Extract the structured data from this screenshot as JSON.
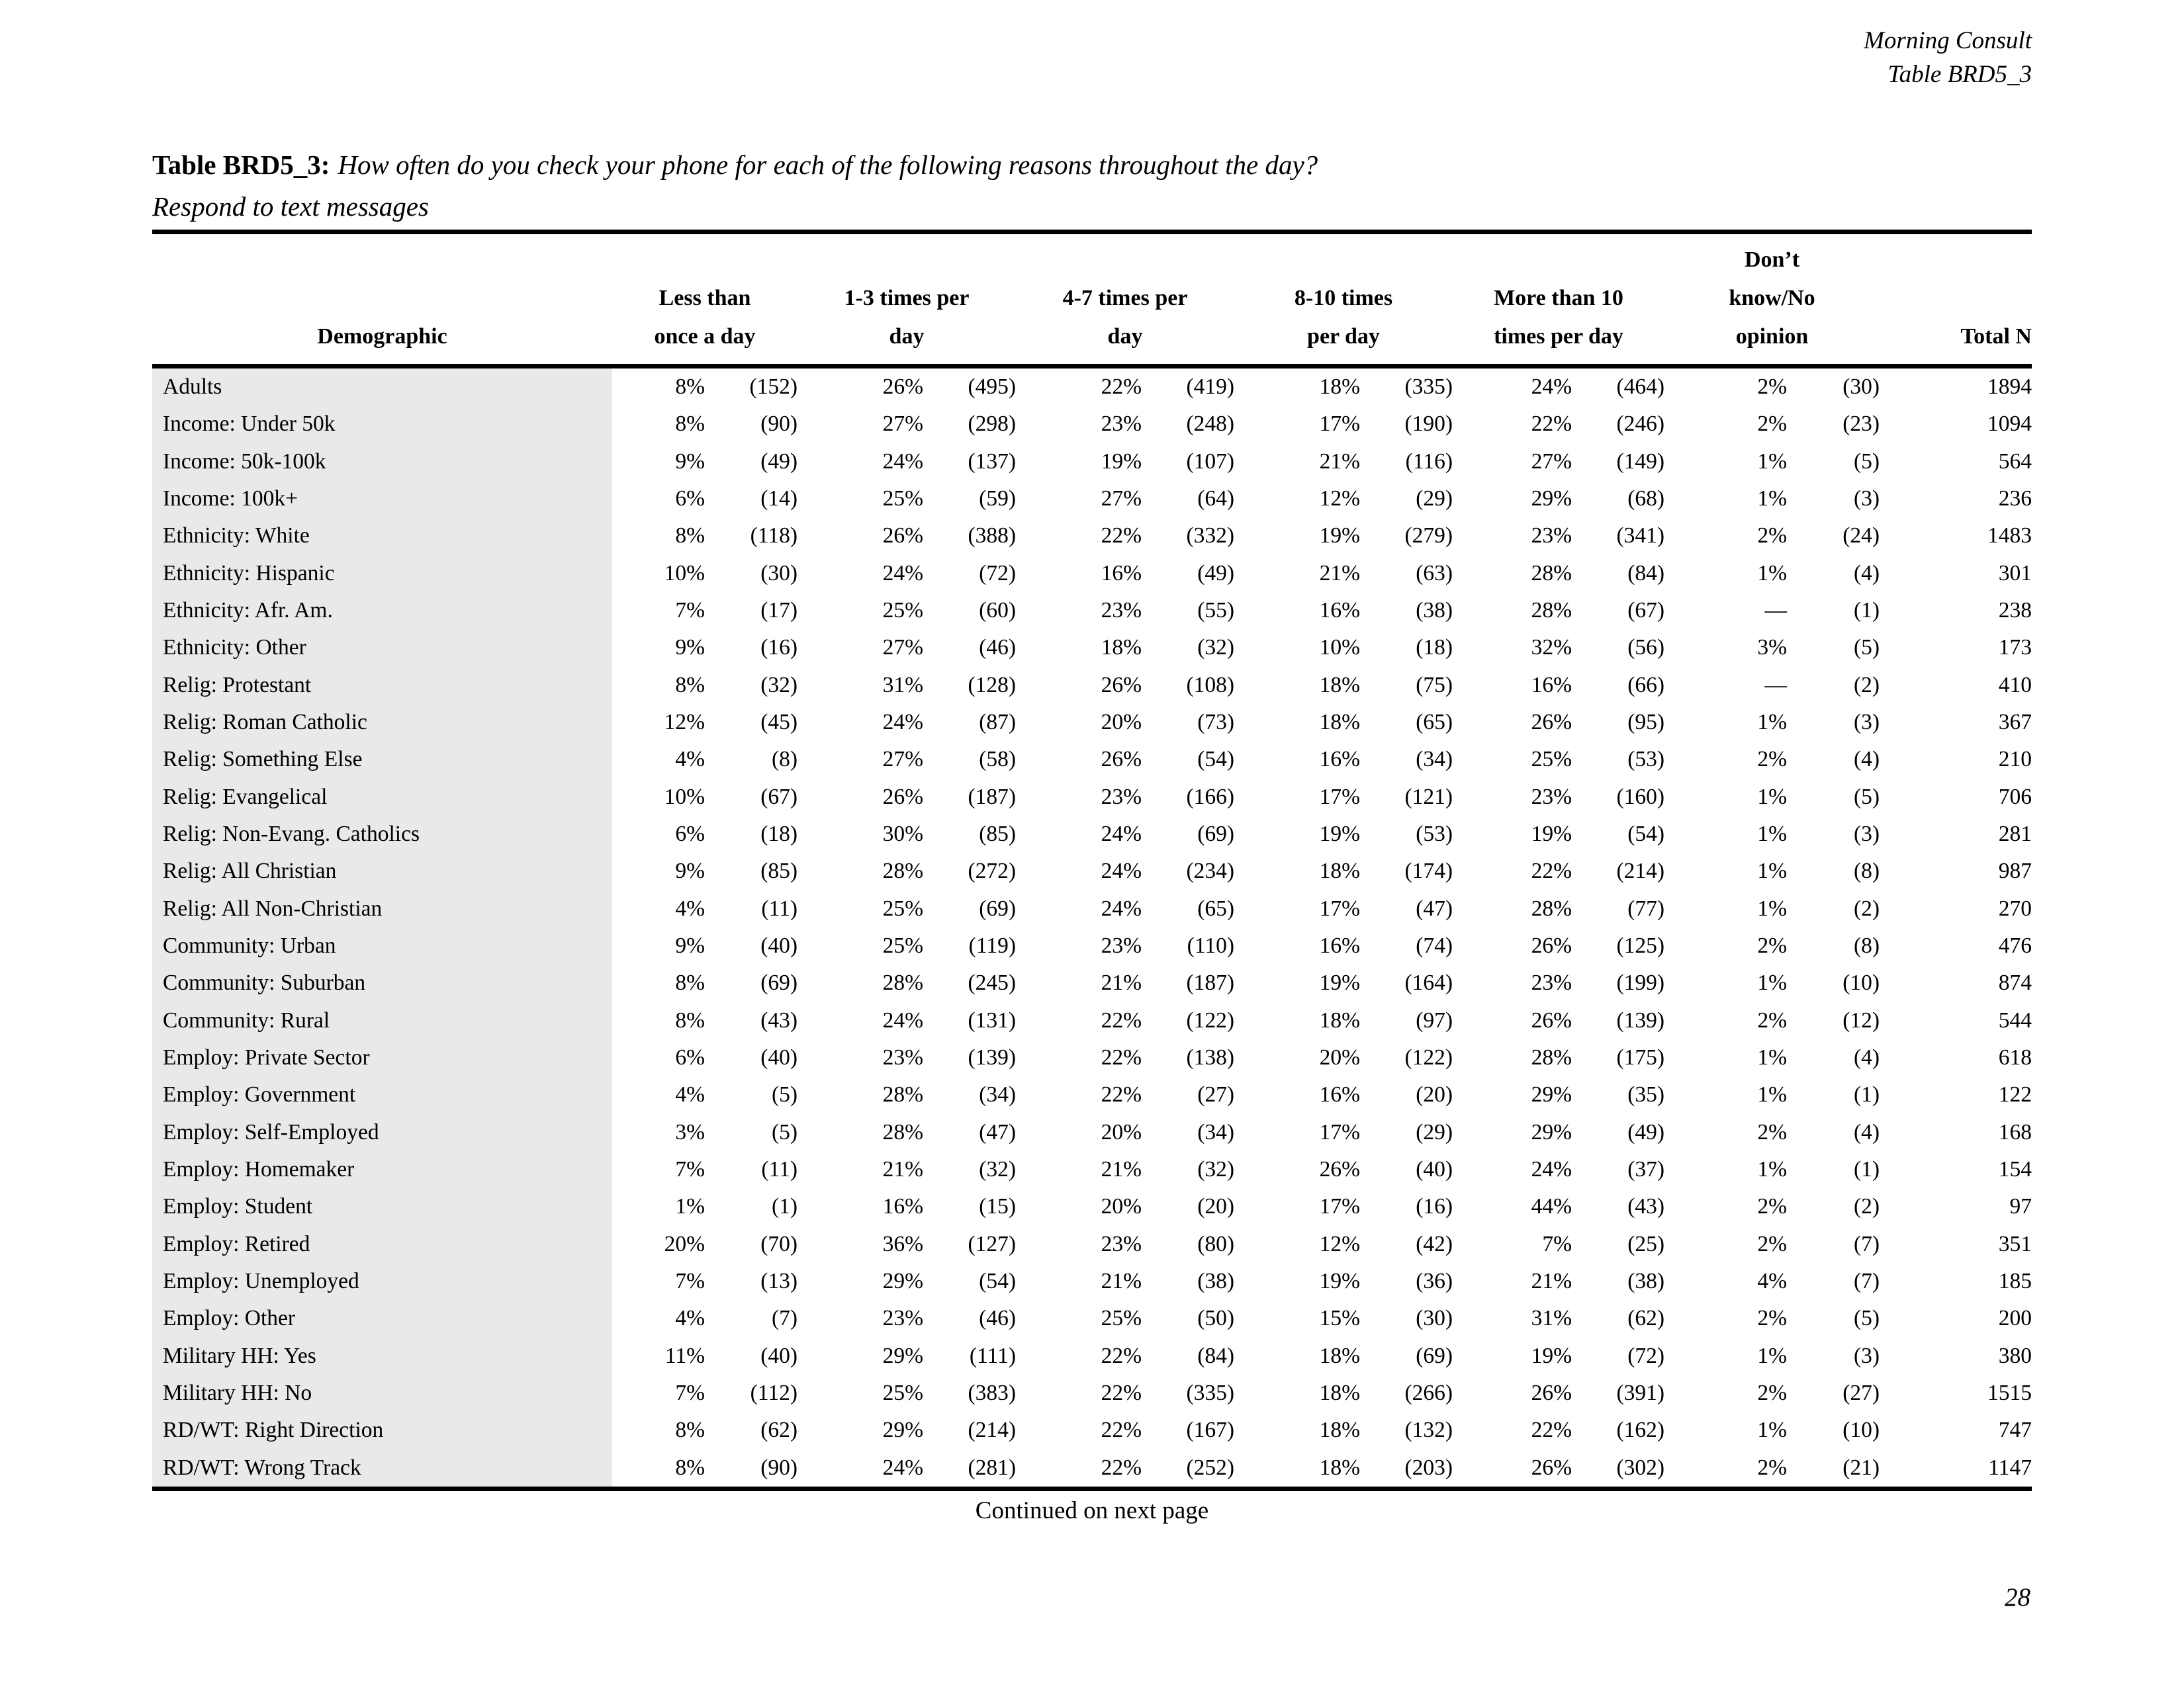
{
  "page_header": {
    "source": "Morning Consult",
    "table_ref": "Table BRD5_3"
  },
  "title": {
    "label": "Table BRD5_3:",
    "question": "How often do you check your phone for each of the following reasons throughout the day?",
    "subtitle": "Respond to text messages"
  },
  "table": {
    "headers": {
      "demographic": "Demographic",
      "columns": [
        [
          "",
          "Less than",
          "once a day"
        ],
        [
          "",
          "1-3 times per",
          "day"
        ],
        [
          "",
          "4-7 times per",
          "day"
        ],
        [
          "",
          "8-10 times",
          "per day"
        ],
        [
          "",
          "More than 10",
          "times per day"
        ],
        [
          "Don’t",
          "know/No",
          "opinion"
        ]
      ],
      "total": "Total N"
    },
    "rows": [
      [
        "Adults",
        "8%",
        "(152)",
        "26%",
        "(495)",
        "22%",
        "(419)",
        "18%",
        "(335)",
        "24%",
        "(464)",
        "2%",
        "(30)",
        "1894"
      ],
      [
        "Income: Under 50k",
        "8%",
        "(90)",
        "27%",
        "(298)",
        "23%",
        "(248)",
        "17%",
        "(190)",
        "22%",
        "(246)",
        "2%",
        "(23)",
        "1094"
      ],
      [
        "Income: 50k-100k",
        "9%",
        "(49)",
        "24%",
        "(137)",
        "19%",
        "(107)",
        "21%",
        "(116)",
        "27%",
        "(149)",
        "1%",
        "(5)",
        "564"
      ],
      [
        "Income: 100k+",
        "6%",
        "(14)",
        "25%",
        "(59)",
        "27%",
        "(64)",
        "12%",
        "(29)",
        "29%",
        "(68)",
        "1%",
        "(3)",
        "236"
      ],
      [
        "Ethnicity: White",
        "8%",
        "(118)",
        "26%",
        "(388)",
        "22%",
        "(332)",
        "19%",
        "(279)",
        "23%",
        "(341)",
        "2%",
        "(24)",
        "1483"
      ],
      [
        "Ethnicity: Hispanic",
        "10%",
        "(30)",
        "24%",
        "(72)",
        "16%",
        "(49)",
        "21%",
        "(63)",
        "28%",
        "(84)",
        "1%",
        "(4)",
        "301"
      ],
      [
        "Ethnicity: Afr. Am.",
        "7%",
        "(17)",
        "25%",
        "(60)",
        "23%",
        "(55)",
        "16%",
        "(38)",
        "28%",
        "(67)",
        "—",
        "(1)",
        "238"
      ],
      [
        "Ethnicity: Other",
        "9%",
        "(16)",
        "27%",
        "(46)",
        "18%",
        "(32)",
        "10%",
        "(18)",
        "32%",
        "(56)",
        "3%",
        "(5)",
        "173"
      ],
      [
        "Relig: Protestant",
        "8%",
        "(32)",
        "31%",
        "(128)",
        "26%",
        "(108)",
        "18%",
        "(75)",
        "16%",
        "(66)",
        "—",
        "(2)",
        "410"
      ],
      [
        "Relig: Roman Catholic",
        "12%",
        "(45)",
        "24%",
        "(87)",
        "20%",
        "(73)",
        "18%",
        "(65)",
        "26%",
        "(95)",
        "1%",
        "(3)",
        "367"
      ],
      [
        "Relig: Something Else",
        "4%",
        "(8)",
        "27%",
        "(58)",
        "26%",
        "(54)",
        "16%",
        "(34)",
        "25%",
        "(53)",
        "2%",
        "(4)",
        "210"
      ],
      [
        "Relig: Evangelical",
        "10%",
        "(67)",
        "26%",
        "(187)",
        "23%",
        "(166)",
        "17%",
        "(121)",
        "23%",
        "(160)",
        "1%",
        "(5)",
        "706"
      ],
      [
        "Relig: Non-Evang. Catholics",
        "6%",
        "(18)",
        "30%",
        "(85)",
        "24%",
        "(69)",
        "19%",
        "(53)",
        "19%",
        "(54)",
        "1%",
        "(3)",
        "281"
      ],
      [
        "Relig: All Christian",
        "9%",
        "(85)",
        "28%",
        "(272)",
        "24%",
        "(234)",
        "18%",
        "(174)",
        "22%",
        "(214)",
        "1%",
        "(8)",
        "987"
      ],
      [
        "Relig: All Non-Christian",
        "4%",
        "(11)",
        "25%",
        "(69)",
        "24%",
        "(65)",
        "17%",
        "(47)",
        "28%",
        "(77)",
        "1%",
        "(2)",
        "270"
      ],
      [
        "Community: Urban",
        "9%",
        "(40)",
        "25%",
        "(119)",
        "23%",
        "(110)",
        "16%",
        "(74)",
        "26%",
        "(125)",
        "2%",
        "(8)",
        "476"
      ],
      [
        "Community: Suburban",
        "8%",
        "(69)",
        "28%",
        "(245)",
        "21%",
        "(187)",
        "19%",
        "(164)",
        "23%",
        "(199)",
        "1%",
        "(10)",
        "874"
      ],
      [
        "Community: Rural",
        "8%",
        "(43)",
        "24%",
        "(131)",
        "22%",
        "(122)",
        "18%",
        "(97)",
        "26%",
        "(139)",
        "2%",
        "(12)",
        "544"
      ],
      [
        "Employ: Private Sector",
        "6%",
        "(40)",
        "23%",
        "(139)",
        "22%",
        "(138)",
        "20%",
        "(122)",
        "28%",
        "(175)",
        "1%",
        "(4)",
        "618"
      ],
      [
        "Employ: Government",
        "4%",
        "(5)",
        "28%",
        "(34)",
        "22%",
        "(27)",
        "16%",
        "(20)",
        "29%",
        "(35)",
        "1%",
        "(1)",
        "122"
      ],
      [
        "Employ: Self-Employed",
        "3%",
        "(5)",
        "28%",
        "(47)",
        "20%",
        "(34)",
        "17%",
        "(29)",
        "29%",
        "(49)",
        "2%",
        "(4)",
        "168"
      ],
      [
        "Employ: Homemaker",
        "7%",
        "(11)",
        "21%",
        "(32)",
        "21%",
        "(32)",
        "26%",
        "(40)",
        "24%",
        "(37)",
        "1%",
        "(1)",
        "154"
      ],
      [
        "Employ: Student",
        "1%",
        "(1)",
        "16%",
        "(15)",
        "20%",
        "(20)",
        "17%",
        "(16)",
        "44%",
        "(43)",
        "2%",
        "(2)",
        "97"
      ],
      [
        "Employ: Retired",
        "20%",
        "(70)",
        "36%",
        "(127)",
        "23%",
        "(80)",
        "12%",
        "(42)",
        "7%",
        "(25)",
        "2%",
        "(7)",
        "351"
      ],
      [
        "Employ: Unemployed",
        "7%",
        "(13)",
        "29%",
        "(54)",
        "21%",
        "(38)",
        "19%",
        "(36)",
        "21%",
        "(38)",
        "4%",
        "(7)",
        "185"
      ],
      [
        "Employ: Other",
        "4%",
        "(7)",
        "23%",
        "(46)",
        "25%",
        "(50)",
        "15%",
        "(30)",
        "31%",
        "(62)",
        "2%",
        "(5)",
        "200"
      ],
      [
        "Military HH: Yes",
        "11%",
        "(40)",
        "29%",
        "(111)",
        "22%",
        "(84)",
        "18%",
        "(69)",
        "19%",
        "(72)",
        "1%",
        "(3)",
        "380"
      ],
      [
        "Military HH: No",
        "7%",
        "(112)",
        "25%",
        "(383)",
        "22%",
        "(335)",
        "18%",
        "(266)",
        "26%",
        "(391)",
        "2%",
        "(27)",
        "1515"
      ],
      [
        "RD/WT: Right Direction",
        "8%",
        "(62)",
        "29%",
        "(214)",
        "22%",
        "(167)",
        "18%",
        "(132)",
        "22%",
        "(162)",
        "1%",
        "(10)",
        "747"
      ],
      [
        "RD/WT: Wrong Track",
        "8%",
        "(90)",
        "24%",
        "(281)",
        "22%",
        "(252)",
        "18%",
        "(203)",
        "26%",
        "(302)",
        "2%",
        "(21)",
        "1147"
      ]
    ]
  },
  "footer": {
    "continued": "Continued on next page",
    "page_number": "28"
  }
}
